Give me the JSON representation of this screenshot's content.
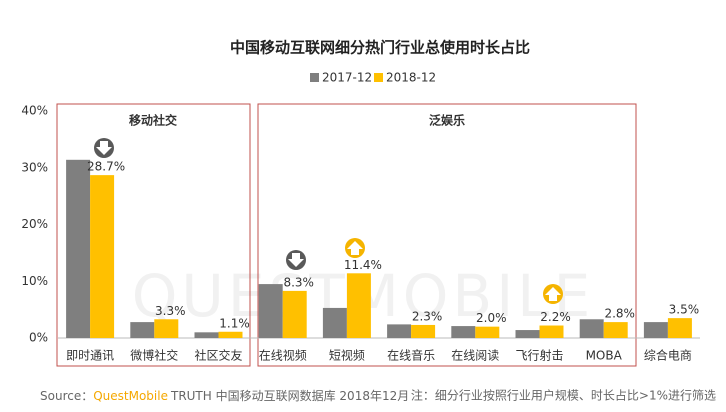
{
  "chart_data": {
    "type": "bar",
    "title": "中国移动互联网细分热门行业总使用时长占比",
    "watermark": "QUESTMOBILE",
    "groups": [
      "移动社交",
      "泛娱乐"
    ],
    "categories": [
      "即时通讯",
      "微博社交",
      "社区交友",
      "在线视频",
      "短视频",
      "在线音乐",
      "在线阅读",
      "飞行射击",
      "MOBA",
      "综合电商"
    ],
    "series": [
      {
        "name": "2017-12",
        "color": "#7f7f7f",
        "values": [
          31.4,
          2.8,
          1.0,
          9.5,
          5.3,
          2.4,
          2.1,
          1.4,
          3.3,
          2.8
        ]
      },
      {
        "name": "2018-12",
        "color": "#ffc000",
        "values": [
          28.7,
          3.3,
          1.1,
          8.3,
          11.4,
          2.3,
          2.0,
          2.2,
          2.8,
          3.5
        ],
        "value_labels": [
          "28.7%",
          "3.3%",
          "1.1%",
          "8.3%",
          "11.4%",
          "2.3%",
          "2.0%",
          "2.2%",
          "2.8%",
          "3.5%"
        ]
      }
    ],
    "ylim": [
      0,
      40
    ],
    "yticks": [
      {
        "value": 0,
        "label": "0%"
      },
      {
        "value": 10,
        "label": "10%"
      },
      {
        "value": 20,
        "label": "20%"
      },
      {
        "value": 30,
        "label": "30%"
      },
      {
        "value": 40,
        "label": "40%"
      }
    ],
    "grid": false,
    "source": {
      "prefix": "Source：",
      "brand": "QuestMobile",
      "rest": "TRUTH 中国移动互联网数据库 2018年12月"
    },
    "note": "注：细分行业按照行业用户规模、时长占比>1%进行筛选"
  }
}
